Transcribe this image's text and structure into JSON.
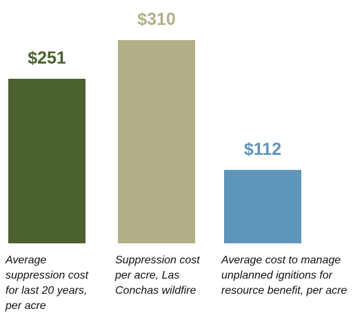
{
  "chart_data": {
    "type": "bar",
    "categories": [
      "Average suppression cost for last 20 years, per acre",
      "Suppression cost per acre, Las Conchas wildfire",
      "Average cost to manage unplanned ignitions for resource benefit, per acre"
    ],
    "values": [
      251,
      310,
      112
    ],
    "value_labels": [
      "$251",
      "$310",
      "$112"
    ],
    "colors": [
      "#4b6130",
      "#b0b088",
      "#5e95ba"
    ]
  }
}
